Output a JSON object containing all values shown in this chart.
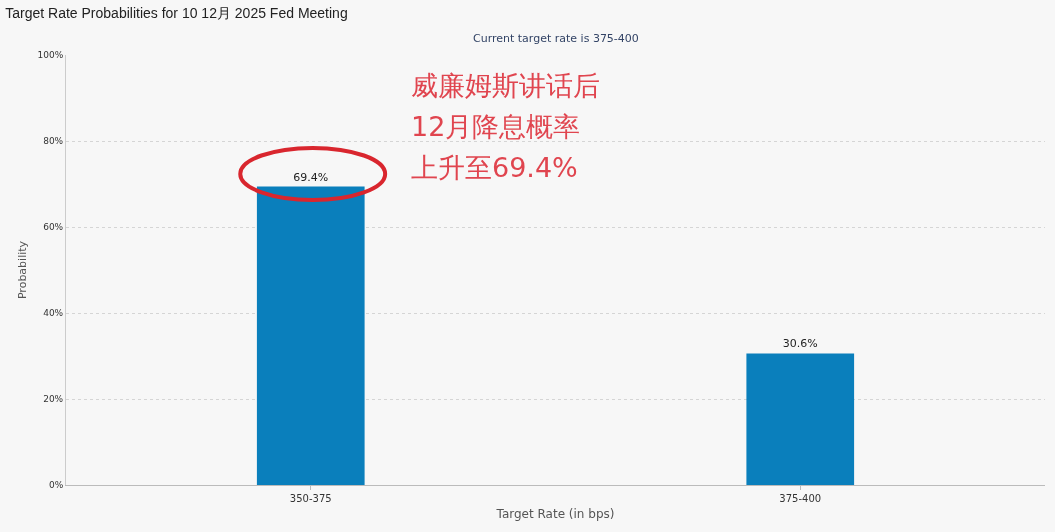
{
  "chart_data": {
    "type": "bar",
    "title": "Target Rate Probabilities for 10 12月 2025 Fed Meeting",
    "subtitle": "Current target rate is 375-400",
    "xlabel": "Target Rate (in bps)",
    "ylabel": "Probability",
    "categories": [
      "350-375",
      "375-400"
    ],
    "values": [
      69.4,
      30.6
    ],
    "value_labels": [
      "69.4%",
      "30.6%"
    ],
    "color": "#0a7fbc",
    "ylim": [
      0,
      100
    ],
    "yticks": [
      {
        "value": 0,
        "label": "0%"
      },
      {
        "value": 20,
        "label": "20%"
      },
      {
        "value": 40,
        "label": "40%"
      },
      {
        "value": 60,
        "label": "60%"
      },
      {
        "value": 80,
        "label": "80%"
      },
      {
        "value": 100,
        "label": "100%"
      }
    ],
    "grid": "y",
    "annotations": [
      "威廉姆斯讲话后",
      "12月降息概率",
      "上升至69.4%"
    ]
  }
}
